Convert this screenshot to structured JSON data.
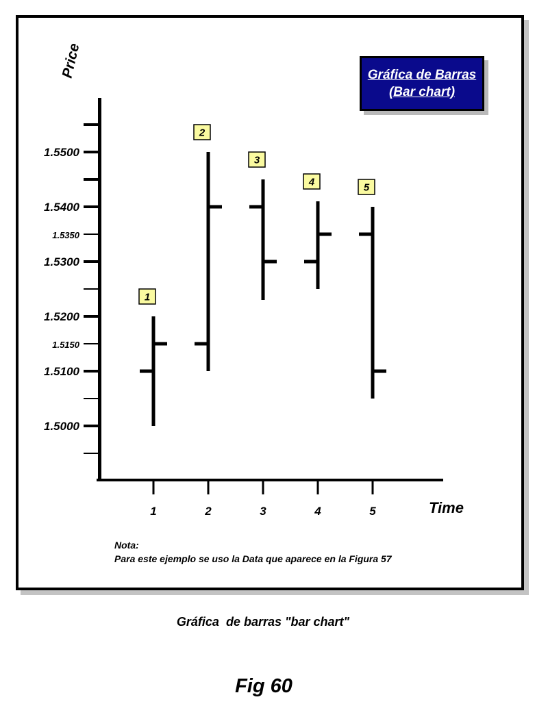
{
  "title_box": {
    "line1": "Gráfica de Barras",
    "line2": "(Bar chart)"
  },
  "y_axis_title": "Price",
  "x_axis_title": "Time",
  "note": {
    "heading": "Nota:",
    "text": "Para este ejemplo se uso la Data que aparece en la Figura 57"
  },
  "caption": "Gráfica  de barras \"bar chart\"",
  "figure_label": "Fig 60",
  "colors": {
    "title_box_bg": "#0a0a8c",
    "title_box_text": "#ffffff",
    "badge_bg": "#fafaa0",
    "ink": "#000000",
    "frame_shadow": "#c3c3c3"
  },
  "chart_data": {
    "type": "bar",
    "subtype": "ohlc-bars",
    "title": "Gráfica de Barras (Bar chart)",
    "xlabel": "Time",
    "ylabel": "Price",
    "grid": false,
    "legend": false,
    "x": [
      1,
      2,
      3,
      4,
      5
    ],
    "point_labels": [
      "1",
      "2",
      "3",
      "4",
      "5"
    ],
    "bars": [
      {
        "time": 1,
        "open": 1.51,
        "high": 1.52,
        "low": 1.5,
        "close": 1.515
      },
      {
        "time": 2,
        "open": 1.515,
        "high": 1.55,
        "low": 1.51,
        "close": 1.54
      },
      {
        "time": 3,
        "open": 1.54,
        "high": 1.545,
        "low": 1.523,
        "close": 1.53
      },
      {
        "time": 4,
        "open": 1.53,
        "high": 1.541,
        "low": 1.525,
        "close": 1.535
      },
      {
        "time": 5,
        "open": 1.535,
        "high": 1.54,
        "low": 1.505,
        "close": 1.51
      }
    ],
    "marker_convention": {
      "open_tick": "left",
      "close_tick": "right"
    },
    "y_ticks": [
      {
        "value": 1.555,
        "label": "",
        "style": "major"
      },
      {
        "value": 1.55,
        "label": "1.5500",
        "style": "major"
      },
      {
        "value": 1.545,
        "label": "",
        "style": "major"
      },
      {
        "value": 1.54,
        "label": "1.5400",
        "style": "major"
      },
      {
        "value": 1.535,
        "label": "1.5350",
        "style": "minor"
      },
      {
        "value": 1.53,
        "label": "1.5300",
        "style": "major"
      },
      {
        "value": 1.525,
        "label": "",
        "style": "minor"
      },
      {
        "value": 1.52,
        "label": "1.5200",
        "style": "major"
      },
      {
        "value": 1.515,
        "label": "1.5150",
        "style": "minor"
      },
      {
        "value": 1.51,
        "label": "1.5100",
        "style": "major"
      },
      {
        "value": 1.505,
        "label": "",
        "style": "minor"
      },
      {
        "value": 1.5,
        "label": "1.5000",
        "style": "major"
      },
      {
        "value": 1.495,
        "label": "",
        "style": "minor"
      }
    ],
    "ylim": [
      1.4925,
      1.5575
    ],
    "xlim": [
      0,
      6
    ]
  }
}
